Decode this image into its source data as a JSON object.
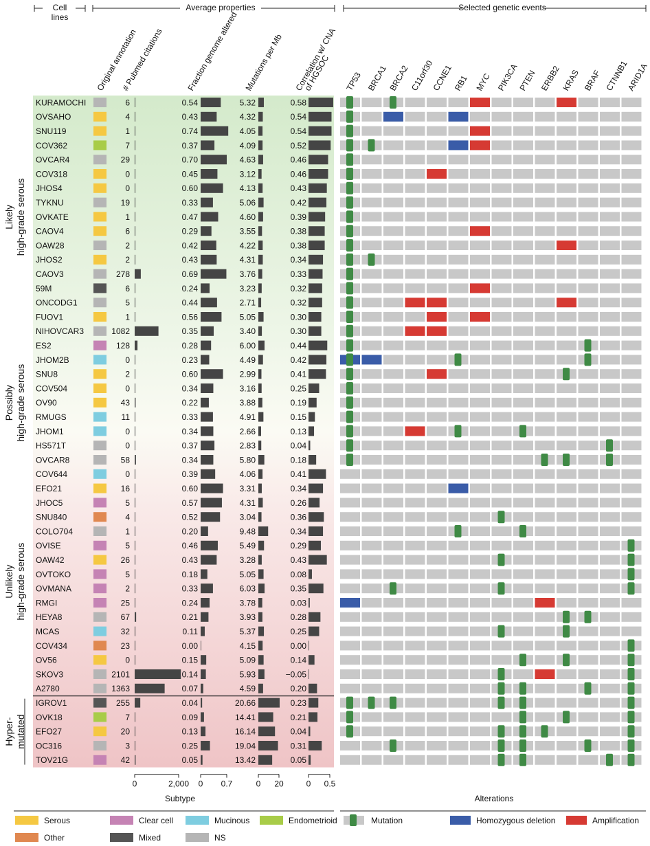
{
  "header": {
    "cell_lines": [
      "Cell",
      "lines"
    ],
    "average_properties": "Average properties",
    "selected_events": "Selected genetic events"
  },
  "columns": {
    "annotation": "Original annotation",
    "pubmed": "# Pubmed citations",
    "fga": "Fraction genome altered",
    "mut": "Mutations per Mb",
    "corr": [
      "Correlation w/ CNA",
      "of HGSOC"
    ]
  },
  "genes": [
    "TP53",
    "BRCA1",
    "BRCA2",
    "C11orf30",
    "CCNE1",
    "RB1",
    "MYC",
    "PIK3CA",
    "PTEN",
    "ERBB2",
    "KRAS",
    "BRAF",
    "CTNNB1",
    "ARID1A"
  ],
  "groups": [
    {
      "label": [
        "Likely",
        "high-grade serous"
      ],
      "start": 0,
      "end": 16,
      "color_top": "#d6ebcf"
    },
    {
      "label": [
        "Possibly",
        "high-grade serous"
      ],
      "start": 17,
      "end": 25,
      "color_top": "#f6f8ee"
    },
    {
      "label": [
        "Unlikely",
        "high-grade serous"
      ],
      "start": 26,
      "end": 41,
      "color_top": "#f8dfe0"
    },
    {
      "label": [
        "Hyper-",
        "mutated"
      ],
      "start": 42,
      "end": 46,
      "color_top": "#efc5c7"
    }
  ],
  "colors": {
    "Serous": "#f5c842",
    "Clear cell": "#c583b4",
    "Mucinous": "#7ecde0",
    "Endometrioid": "#a8cc48",
    "Other": "#e08850",
    "Mixed": "#555555",
    "NS": "#b5b5b5",
    "bar": "#454545",
    "grey_cell": "#c8c8c8",
    "mutation": "#3f8a45",
    "deletion": "#3a5ca8",
    "amplification": "#d63a33"
  },
  "chart_data": {
    "type": "table",
    "rows": [
      {
        "name": "KURAMOCHI",
        "annot": "NS",
        "pub": 6,
        "fga": "0.54",
        "mut": "5.32",
        "corr": "0.58",
        "ev": {
          "TP53": "mut",
          "BRCA2": "mut",
          "MYC": "amp",
          "KRAS": "amp"
        }
      },
      {
        "name": "OVSAHO",
        "annot": "Serous",
        "pub": 4,
        "fga": "0.43",
        "mut": "4.32",
        "corr": "0.54",
        "ev": {
          "TP53": "mut",
          "BRCA2": "del",
          "RB1": "del"
        }
      },
      {
        "name": "SNU119",
        "annot": "Serous",
        "pub": 1,
        "fga": "0.74",
        "mut": "4.05",
        "corr": "0.54",
        "ev": {
          "TP53": "mut",
          "MYC": "amp"
        }
      },
      {
        "name": "COV362",
        "annot": "Endometrioid",
        "pub": 7,
        "fga": "0.37",
        "mut": "4.09",
        "corr": "0.52",
        "ev": {
          "TP53": "mut",
          "BRCA1": "mut",
          "RB1": "del",
          "MYC": "amp"
        }
      },
      {
        "name": "OVCAR4",
        "annot": "NS",
        "pub": 29,
        "fga": "0.70",
        "mut": "4.63",
        "corr": "0.46",
        "ev": {
          "TP53": "mut"
        }
      },
      {
        "name": "COV318",
        "annot": "Serous",
        "pub": 0,
        "fga": "0.45",
        "mut": "3.12",
        "corr": "0.46",
        "ev": {
          "TP53": "mut",
          "CCNE1": "amp"
        }
      },
      {
        "name": "JHOS4",
        "annot": "Serous",
        "pub": 0,
        "fga": "0.60",
        "mut": "4.13",
        "corr": "0.43",
        "ev": {
          "TP53": "mut"
        }
      },
      {
        "name": "TYKNU",
        "annot": "NS",
        "pub": 19,
        "fga": "0.33",
        "mut": "5.06",
        "corr": "0.42",
        "ev": {
          "TP53": "mut"
        }
      },
      {
        "name": "OVKATE",
        "annot": "Serous",
        "pub": 1,
        "fga": "0.47",
        "mut": "4.60",
        "corr": "0.39",
        "ev": {
          "TP53": "mut"
        }
      },
      {
        "name": "CAOV4",
        "annot": "Serous",
        "pub": 6,
        "fga": "0.29",
        "mut": "3.55",
        "corr": "0.38",
        "ev": {
          "TP53": "mut",
          "MYC": "amp"
        }
      },
      {
        "name": "OAW28",
        "annot": "NS",
        "pub": 2,
        "fga": "0.42",
        "mut": "4.22",
        "corr": "0.38",
        "ev": {
          "TP53": "mut",
          "KRAS": "amp"
        }
      },
      {
        "name": "JHOS2",
        "annot": "Serous",
        "pub": 2,
        "fga": "0.43",
        "mut": "4.31",
        "corr": "0.34",
        "ev": {
          "TP53": "mut",
          "BRCA1": "mut"
        }
      },
      {
        "name": "CAOV3",
        "annot": "NS",
        "pub": 278,
        "fga": "0.69",
        "mut": "3.76",
        "corr": "0.33",
        "ev": {
          "TP53": "mut"
        }
      },
      {
        "name": "59M",
        "annot": "Mixed",
        "pub": 6,
        "fga": "0.24",
        "mut": "3.23",
        "corr": "0.32",
        "ev": {
          "TP53": "mut",
          "MYC": "amp"
        }
      },
      {
        "name": "ONCODG1",
        "annot": "NS",
        "pub": 5,
        "fga": "0.44",
        "mut": "2.71",
        "corr": "0.32",
        "ev": {
          "TP53": "mut",
          "C11orf30": "amp",
          "CCNE1": "amp",
          "KRAS": "amp"
        }
      },
      {
        "name": "FUOV1",
        "annot": "Serous",
        "pub": 1,
        "fga": "0.56",
        "mut": "5.05",
        "corr": "0.30",
        "ev": {
          "TP53": "mut",
          "CCNE1": "amp",
          "MYC": "amp"
        }
      },
      {
        "name": "NIHOVCAR3",
        "annot": "NS",
        "pub": 1082,
        "fga": "0.35",
        "mut": "3.40",
        "corr": "0.30",
        "ev": {
          "TP53": "mut",
          "C11orf30": "amp",
          "CCNE1": "amp"
        }
      },
      {
        "name": "ES2",
        "annot": "Clear cell",
        "pub": 128,
        "fga": "0.28",
        "mut": "6.00",
        "corr": "0.44",
        "ev": {
          "TP53": "mut",
          "BRAF": "mut"
        }
      },
      {
        "name": "JHOM2B",
        "annot": "Mucinous",
        "pub": 0,
        "fga": "0.23",
        "mut": "4.49",
        "corr": "0.42",
        "ev": {
          "TP53": "mutdel",
          "BRCA1": "del",
          "RB1": "mut",
          "BRAF": "mut"
        }
      },
      {
        "name": "SNU8",
        "annot": "Serous",
        "pub": 2,
        "fga": "0.60",
        "mut": "2.99",
        "corr": "0.41",
        "ev": {
          "TP53": "mut",
          "CCNE1": "amp",
          "KRAS": "mut"
        }
      },
      {
        "name": "COV504",
        "annot": "Serous",
        "pub": 0,
        "fga": "0.34",
        "mut": "3.16",
        "corr": "0.25",
        "ev": {
          "TP53": "mut"
        }
      },
      {
        "name": "OV90",
        "annot": "Serous",
        "pub": 43,
        "fga": "0.22",
        "mut": "3.88",
        "corr": "0.19",
        "ev": {
          "TP53": "mut"
        }
      },
      {
        "name": "RMUGS",
        "annot": "Mucinous",
        "pub": 11,
        "fga": "0.33",
        "mut": "4.91",
        "corr": "0.15",
        "ev": {
          "TP53": "mut"
        }
      },
      {
        "name": "JHOM1",
        "annot": "Mucinous",
        "pub": 0,
        "fga": "0.34",
        "mut": "2.66",
        "corr": "0.13",
        "ev": {
          "TP53": "mut",
          "C11orf30": "amp",
          "RB1": "mut",
          "PTEN": "mut"
        }
      },
      {
        "name": "HS571T",
        "annot": "NS",
        "pub": 0,
        "fga": "0.37",
        "mut": "2.83",
        "corr": "0.04",
        "ev": {
          "TP53": "mut",
          "CTNNB1": "mut"
        }
      },
      {
        "name": "OVCAR8",
        "annot": "NS",
        "pub": 58,
        "fga": "0.34",
        "mut": "5.80",
        "corr": "0.18",
        "ev": {
          "TP53": "mut",
          "ERBB2": "mut",
          "KRAS": "mut",
          "CTNNB1": "mut"
        }
      },
      {
        "name": "COV644",
        "annot": "Mucinous",
        "pub": 0,
        "fga": "0.39",
        "mut": "4.06",
        "corr": "0.41",
        "ev": {}
      },
      {
        "name": "EFO21",
        "annot": "Serous",
        "pub": 16,
        "fga": "0.60",
        "mut": "3.31",
        "corr": "0.34",
        "ev": {
          "RB1": "del"
        }
      },
      {
        "name": "JHOC5",
        "annot": "Clear cell",
        "pub": 5,
        "fga": "0.57",
        "mut": "4.31",
        "corr": "0.26",
        "ev": {}
      },
      {
        "name": "SNU840",
        "annot": "Other",
        "pub": 4,
        "fga": "0.52",
        "mut": "3.04",
        "corr": "0.36",
        "ev": {
          "PIK3CA": "mut"
        }
      },
      {
        "name": "COLO704",
        "annot": "NS",
        "pub": 1,
        "fga": "0.20",
        "mut": "9.48",
        "corr": "0.34",
        "ev": {
          "RB1": "mut",
          "PTEN": "mut"
        }
      },
      {
        "name": "OVISE",
        "annot": "Clear cell",
        "pub": 5,
        "fga": "0.46",
        "mut": "5.49",
        "corr": "0.29",
        "ev": {
          "ARID1A": "mut"
        }
      },
      {
        "name": "OAW42",
        "annot": "Serous",
        "pub": 26,
        "fga": "0.43",
        "mut": "3.28",
        "corr": "0.43",
        "ev": {
          "PIK3CA": "mut",
          "ARID1A": "mut"
        }
      },
      {
        "name": "OVTOKO",
        "annot": "Clear cell",
        "pub": 5,
        "fga": "0.18",
        "mut": "5.05",
        "corr": "0.08",
        "ev": {
          "ARID1A": "mut"
        }
      },
      {
        "name": "OVMANA",
        "annot": "Clear cell",
        "pub": 2,
        "fga": "0.33",
        "mut": "6.03",
        "corr": "0.35",
        "ev": {
          "BRCA2": "mut",
          "PIK3CA": "mut",
          "ARID1A": "mut"
        }
      },
      {
        "name": "RMGI",
        "annot": "Clear cell",
        "pub": 25,
        "fga": "0.24",
        "mut": "3.78",
        "corr": "0.03",
        "ev": {
          "TP53": "del",
          "ERBB2": "amp"
        }
      },
      {
        "name": "HEYA8",
        "annot": "NS",
        "pub": 67,
        "fga": "0.21",
        "mut": "3.93",
        "corr": "0.28",
        "ev": {
          "KRAS": "mut",
          "BRAF": "mut"
        }
      },
      {
        "name": "MCAS",
        "annot": "Mucinous",
        "pub": 32,
        "fga": "0.11",
        "mut": "5.37",
        "corr": "0.25",
        "ev": {
          "PIK3CA": "mut",
          "KRAS": "mut"
        }
      },
      {
        "name": "COV434",
        "annot": "Other",
        "pub": 23,
        "fga": "0.00",
        "mut": "4.15",
        "corr": "0.00",
        "ev": {
          "ARID1A": "mut"
        }
      },
      {
        "name": "OV56",
        "annot": "Serous",
        "pub": 0,
        "fga": "0.15",
        "mut": "5.09",
        "corr": "0.14",
        "ev": {
          "PTEN": "mut",
          "KRAS": "mut",
          "ARID1A": "mut"
        }
      },
      {
        "name": "SKOV3",
        "annot": "NS",
        "pub": 2101,
        "fga": "0.14",
        "mut": "5.93",
        "corr": "−0.05",
        "ev": {
          "PIK3CA": "mut",
          "ERBB2": "amp",
          "ARID1A": "mut"
        }
      },
      {
        "name": "A2780",
        "annot": "NS",
        "pub": 1363,
        "fga": "0.07",
        "mut": "4.59",
        "corr": "0.20",
        "ev": {
          "PIK3CA": "mut",
          "PTEN": "mut",
          "BRAF": "mut",
          "ARID1A": "mut"
        }
      },
      {
        "name": "IGROV1",
        "annot": "Mixed",
        "pub": 255,
        "fga": "0.04",
        "mut": "20.66",
        "corr": "0.23",
        "ev": {
          "TP53": "mut",
          "BRCA1": "mut",
          "BRCA2": "mut",
          "PIK3CA": "mut",
          "PTEN": "mut",
          "ARID1A": "mut"
        }
      },
      {
        "name": "OVK18",
        "annot": "Endometrioid",
        "pub": 7,
        "fga": "0.09",
        "mut": "14.41",
        "corr": "0.21",
        "ev": {
          "TP53": "mut",
          "PTEN": "mut",
          "KRAS": "mut",
          "ARID1A": "mut"
        }
      },
      {
        "name": "EFO27",
        "annot": "Serous",
        "pub": 20,
        "fga": "0.13",
        "mut": "16.14",
        "corr": "0.04",
        "ev": {
          "TP53": "mut",
          "PIK3CA": "mut",
          "PTEN": "mut",
          "ERBB2": "mut",
          "ARID1A": "mut"
        }
      },
      {
        "name": "OC316",
        "annot": "NS",
        "pub": 3,
        "fga": "0.25",
        "mut": "19.04",
        "corr": "0.31",
        "ev": {
          "BRCA2": "mut",
          "PIK3CA": "mut",
          "PTEN": "mut",
          "BRAF": "mut",
          "ARID1A": "mut"
        }
      },
      {
        "name": "TOV21G",
        "annot": "Clear cell",
        "pub": 42,
        "fga": "0.05",
        "mut": "13.42",
        "corr": "0.05",
        "ev": {
          "PIK3CA": "mut",
          "PTEN": "mut",
          "CTNNB1": "mut",
          "ARID1A": "mut"
        }
      }
    ],
    "axes": {
      "pubmed": {
        "ticks": [
          "0",
          "2,000"
        ],
        "max": 2000
      },
      "fga": {
        "ticks": [
          "0",
          "0.7"
        ],
        "max": 0.7
      },
      "mut": {
        "ticks": [
          "0",
          "20"
        ],
        "max": 20
      },
      "corr": {
        "ticks": [
          "0",
          "0.5"
        ],
        "max": 0.5
      }
    }
  },
  "footer": {
    "subtype_title": "Subtype",
    "alterations_title": "Alterations",
    "subtype_legend": [
      "Serous",
      "Clear cell",
      "Mucinous",
      "Endometrioid",
      "Other",
      "Mixed",
      "NS"
    ],
    "alteration_legend": [
      "Mutation",
      "Homozygous deletion",
      "Amplification"
    ]
  }
}
